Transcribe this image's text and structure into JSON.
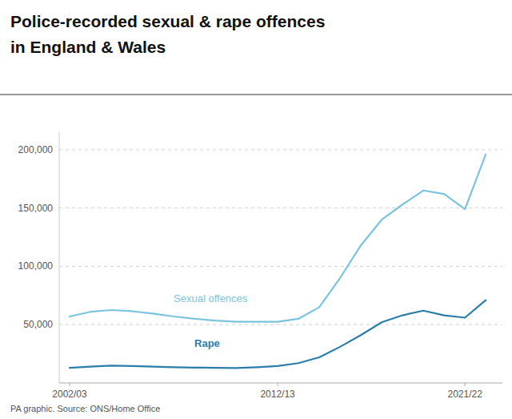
{
  "chart_data": {
    "type": "line",
    "title": [
      "Police-recorded sexual & rape offences",
      "in England & Wales"
    ],
    "annotations": [
      "PA graphic. Source: ONS/Home Office"
    ],
    "x": [
      2002,
      2003,
      2004,
      2005,
      2006,
      2007,
      2008,
      2009,
      2010,
      2011,
      2012,
      2013,
      2014,
      2015,
      2016,
      2017,
      2018,
      2019,
      2020,
      2021,
      2022
    ],
    "series": [
      {
        "name": "Sexual offences",
        "color": "#7ac4de",
        "values": [
          57000,
          61000,
          62500,
          61500,
          59500,
          57000,
          55000,
          53500,
          52500,
          52500,
          52500,
          55000,
          65000,
          90000,
          118000,
          140000,
          153000,
          165000,
          162000,
          149000,
          196000
        ]
      },
      {
        "name": "Rape",
        "color": "#2a7ea8",
        "values": [
          13000,
          14000,
          14800,
          14500,
          14000,
          13500,
          13200,
          13000,
          12800,
          13500,
          14500,
          17000,
          22000,
          31000,
          41000,
          52000,
          58000,
          62000,
          58000,
          56000,
          71000
        ]
      }
    ],
    "xlim": [
      2001.5,
      2022.8
    ],
    "xticks": [
      {
        "value": 2002,
        "label": "2002/03"
      },
      {
        "value": 2012,
        "label": "2012/13"
      },
      {
        "value": 2021,
        "label": "2021/22"
      }
    ],
    "ylim": [
      0,
      215000
    ],
    "yticks": [
      {
        "value": 50000,
        "label": "50,000"
      },
      {
        "value": 100000,
        "label": "100,000"
      },
      {
        "value": 150000,
        "label": "150,000"
      },
      {
        "value": 200000,
        "label": "200,000"
      }
    ],
    "grid": true
  }
}
